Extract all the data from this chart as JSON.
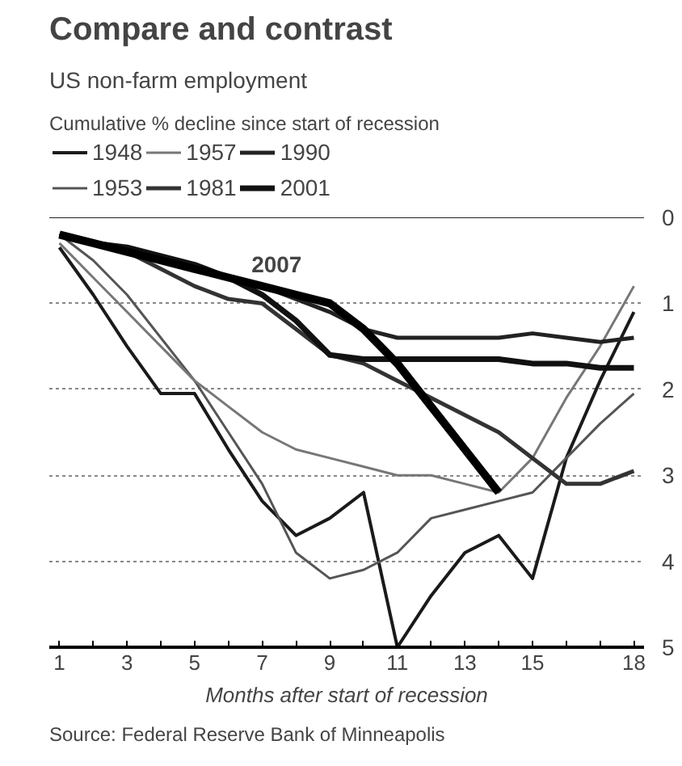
{
  "chart_data": {
    "type": "line",
    "title": "Compare and contrast",
    "subtitle": "US non-farm employment",
    "ylabel": "Cumulative % decline since start of recession",
    "xlabel": "Months after start of recession",
    "x": [
      1,
      2,
      3,
      4,
      5,
      6,
      7,
      8,
      9,
      10,
      11,
      12,
      13,
      14,
      15,
      16,
      17,
      18
    ],
    "series": [
      {
        "name": "1948",
        "color": "#1a1a1a",
        "values": [
          0.35,
          0.9,
          1.5,
          2.05,
          2.05,
          2.7,
          3.3,
          3.7,
          3.5,
          3.2,
          5.0,
          4.4,
          3.9,
          3.7,
          4.2,
          2.8,
          1.9,
          1.1
        ]
      },
      {
        "name": "1953",
        "color": "#555555",
        "values": [
          0.2,
          0.5,
          0.9,
          1.4,
          1.9,
          2.5,
          3.1,
          3.9,
          4.2,
          4.1,
          3.9,
          3.5,
          3.4,
          3.3,
          3.2,
          2.8,
          2.4,
          2.05
        ]
      },
      {
        "name": "1957",
        "color": "#777777",
        "values": [
          0.3,
          0.7,
          1.1,
          1.5,
          1.9,
          2.2,
          2.5,
          2.7,
          2.8,
          2.9,
          3.0,
          3.0,
          3.1,
          3.2,
          2.8,
          2.1,
          1.5,
          0.8
        ]
      },
      {
        "name": "1981",
        "color": "#333333",
        "values": [
          0.2,
          0.3,
          0.4,
          0.6,
          0.8,
          0.95,
          1.0,
          1.3,
          1.6,
          1.7,
          1.9,
          2.1,
          2.3,
          2.5,
          2.8,
          3.1,
          3.1,
          2.95
        ]
      },
      {
        "name": "1990",
        "color": "#222222",
        "values": [
          0.2,
          0.3,
          0.4,
          0.5,
          0.6,
          0.7,
          0.8,
          0.95,
          1.1,
          1.3,
          1.4,
          1.4,
          1.4,
          1.4,
          1.35,
          1.4,
          1.45,
          1.4
        ]
      },
      {
        "name": "2001",
        "color": "#111111",
        "values": [
          0.2,
          0.3,
          0.35,
          0.45,
          0.55,
          0.7,
          0.9,
          1.2,
          1.6,
          1.65,
          1.65,
          1.65,
          1.65,
          1.65,
          1.7,
          1.7,
          1.75,
          1.75
        ]
      },
      {
        "name": "2007",
        "color": "#000000",
        "values": [
          0.2,
          0.3,
          0.4,
          0.5,
          0.6,
          0.7,
          0.8,
          0.9,
          1.0,
          1.3,
          1.7,
          2.2,
          2.7,
          3.2,
          null,
          null,
          null,
          null
        ]
      }
    ],
    "annotations": [
      "Source: Federal Reserve Bank of Minneapolis"
    ],
    "ylim": [
      5,
      0
    ],
    "yticks": [
      0,
      1,
      2,
      3,
      4,
      5
    ],
    "xlim": [
      0.7,
      18.3
    ],
    "xticks": [
      1,
      {
        "value": 2,
        "label": null
      },
      3,
      {
        "value": 4,
        "label": null
      },
      5,
      {
        "value": 6,
        "label": null
      },
      7,
      {
        "value": 8,
        "label": null
      },
      9,
      {
        "value": 10,
        "label": null
      },
      11,
      {
        "value": 12,
        "label": null
      },
      13,
      {
        "value": 14,
        "label": null
      },
      15,
      {
        "value": 16,
        "label": null
      },
      {
        "value": 17,
        "label": null
      },
      18
    ],
    "grid": "y",
    "legend": "top"
  }
}
